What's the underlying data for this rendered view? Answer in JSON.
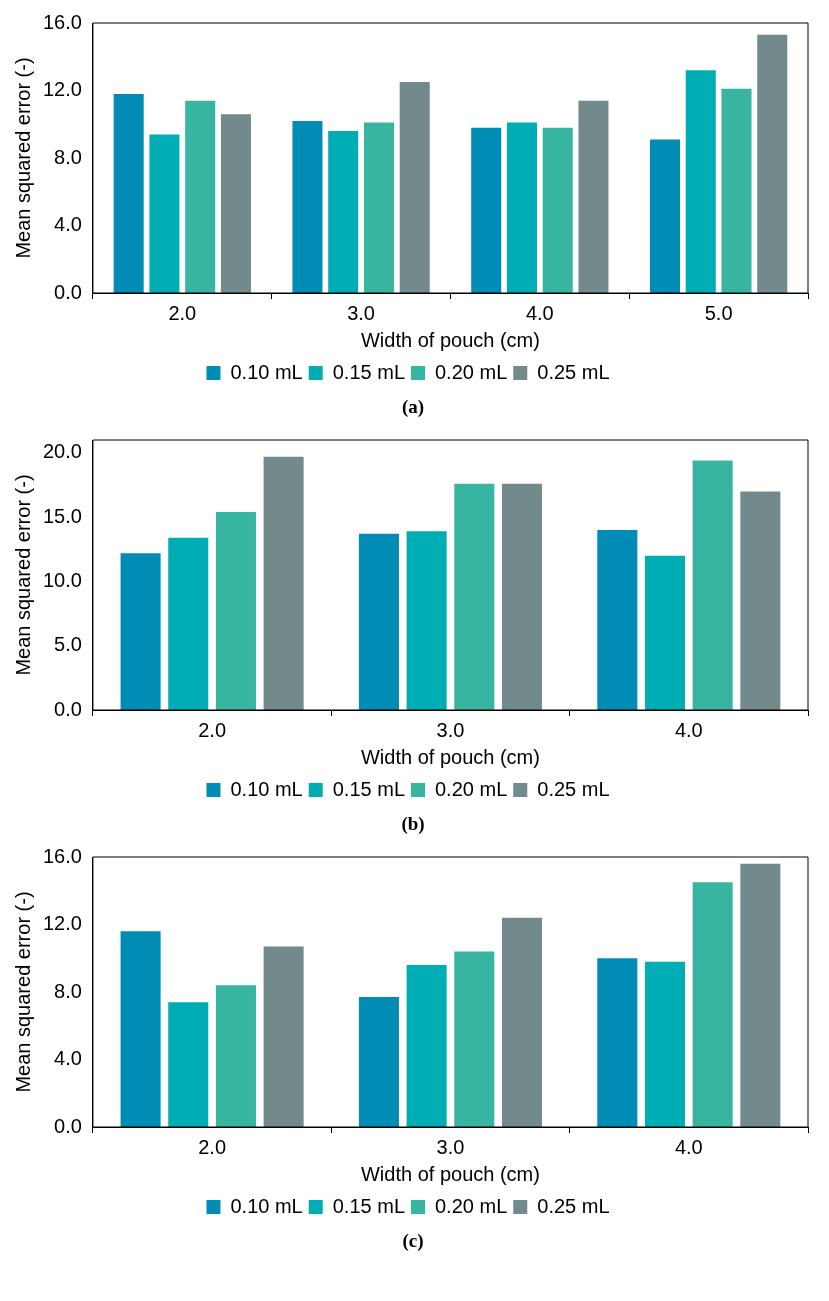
{
  "chart_data": [
    {
      "type": "bar",
      "categories": [
        "2.0",
        "3.0",
        "4.0",
        "5.0"
      ],
      "xlabel": "Width of pouch (cm)",
      "ylabel": "Mean squared error (-)",
      "ylim": [
        0,
        16
      ],
      "yticks": [
        {
          "value": 0,
          "label": "0.0"
        },
        {
          "value": 4,
          "label": "4.0"
        },
        {
          "value": 8,
          "label": "8.0"
        },
        {
          "value": 12,
          "label": "12.0"
        },
        {
          "value": 16,
          "label": "16.0"
        }
      ],
      "grid": false,
      "legend": "bottom",
      "annotations": [
        "(a)"
      ],
      "series": [
        {
          "name": "0.10 mL",
          "color": "#008cb4",
          "values": [
            11.8,
            10.2,
            9.8,
            9.1
          ]
        },
        {
          "name": "0.15 mL",
          "color": "#00adb5",
          "values": [
            9.4,
            9.6,
            10.1,
            13.2
          ]
        },
        {
          "name": "0.20 mL",
          "color": "#37b5a0",
          "values": [
            11.4,
            10.1,
            9.8,
            12.1
          ]
        },
        {
          "name": "0.25 mL",
          "color": "#728a8c",
          "values": [
            10.6,
            12.5,
            11.4,
            15.3
          ]
        }
      ]
    },
    {
      "type": "bar",
      "categories": [
        "2.0",
        "3.0",
        "4.0"
      ],
      "xlabel": "Width of pouch (cm)",
      "ylabel": "Mean squared error (-)",
      "ylim": [
        0,
        21
      ],
      "yticks": [
        {
          "value": 0,
          "label": "0.0"
        },
        {
          "value": 5,
          "label": "5.0"
        },
        {
          "value": 10,
          "label": "10.0"
        },
        {
          "value": 15,
          "label": "15.0"
        },
        {
          "value": 20,
          "label": "20.0"
        }
      ],
      "grid": false,
      "legend": "bottom",
      "annotations": [
        "(b)"
      ],
      "series": [
        {
          "name": "0.10 mL",
          "color": "#008cb4",
          "values": [
            12.2,
            13.7,
            14.0
          ]
        },
        {
          "name": "0.15 mL",
          "color": "#00adb5",
          "values": [
            13.4,
            13.9,
            12.0
          ]
        },
        {
          "name": "0.20 mL",
          "color": "#37b5a0",
          "values": [
            15.4,
            17.6,
            19.4
          ]
        },
        {
          "name": "0.25 mL",
          "color": "#728a8c",
          "values": [
            19.7,
            17.6,
            17.0
          ]
        }
      ]
    },
    {
      "type": "bar",
      "categories": [
        "2.0",
        "3.0",
        "4.0"
      ],
      "xlabel": "Width of pouch (cm)",
      "ylabel": "Mean squared error (-)",
      "ylim": [
        0,
        16
      ],
      "yticks": [
        {
          "value": 0,
          "label": "0.0"
        },
        {
          "value": 4,
          "label": "4.0"
        },
        {
          "value": 8,
          "label": "8.0"
        },
        {
          "value": 12,
          "label": "12.0"
        },
        {
          "value": 16,
          "label": "16.0"
        }
      ],
      "grid": false,
      "legend": "bottom",
      "annotations": [
        "(c)"
      ],
      "series": [
        {
          "name": "0.10 mL",
          "color": "#008cb4",
          "values": [
            11.6,
            7.7,
            10.0
          ]
        },
        {
          "name": "0.15 mL",
          "color": "#00adb5",
          "values": [
            7.4,
            9.6,
            9.8
          ]
        },
        {
          "name": "0.20 mL",
          "color": "#37b5a0",
          "values": [
            8.4,
            10.4,
            14.5
          ]
        },
        {
          "name": "0.25 mL",
          "color": "#728a8c",
          "values": [
            10.7,
            12.4,
            15.6
          ]
        }
      ]
    }
  ]
}
